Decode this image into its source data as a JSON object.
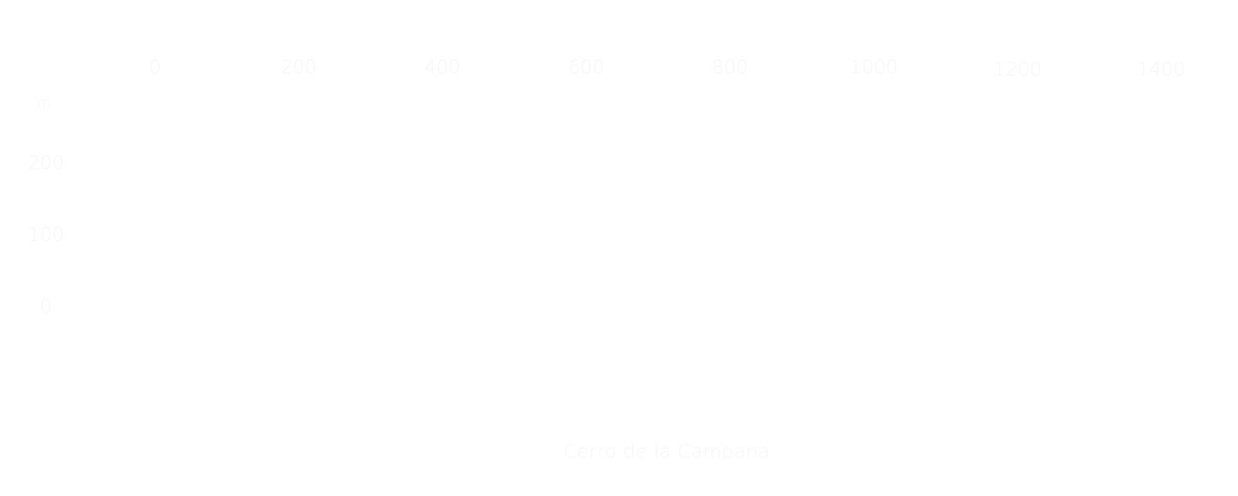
{
  "chart_data": {
    "type": "area",
    "title": "Cerro de la Campana",
    "xlabel": "",
    "ylabel": "m",
    "x_ticks": [
      "0",
      "200",
      "400",
      "600",
      "800",
      "1000",
      "1200",
      "1400"
    ],
    "y_ticks": [
      "0",
      "100",
      "200"
    ],
    "xlim": [
      0,
      1400
    ],
    "ylim": [
      0,
      200
    ],
    "grid": false,
    "series": []
  },
  "colors": {
    "background": "#ffffff",
    "text": "#f6f6f6"
  }
}
